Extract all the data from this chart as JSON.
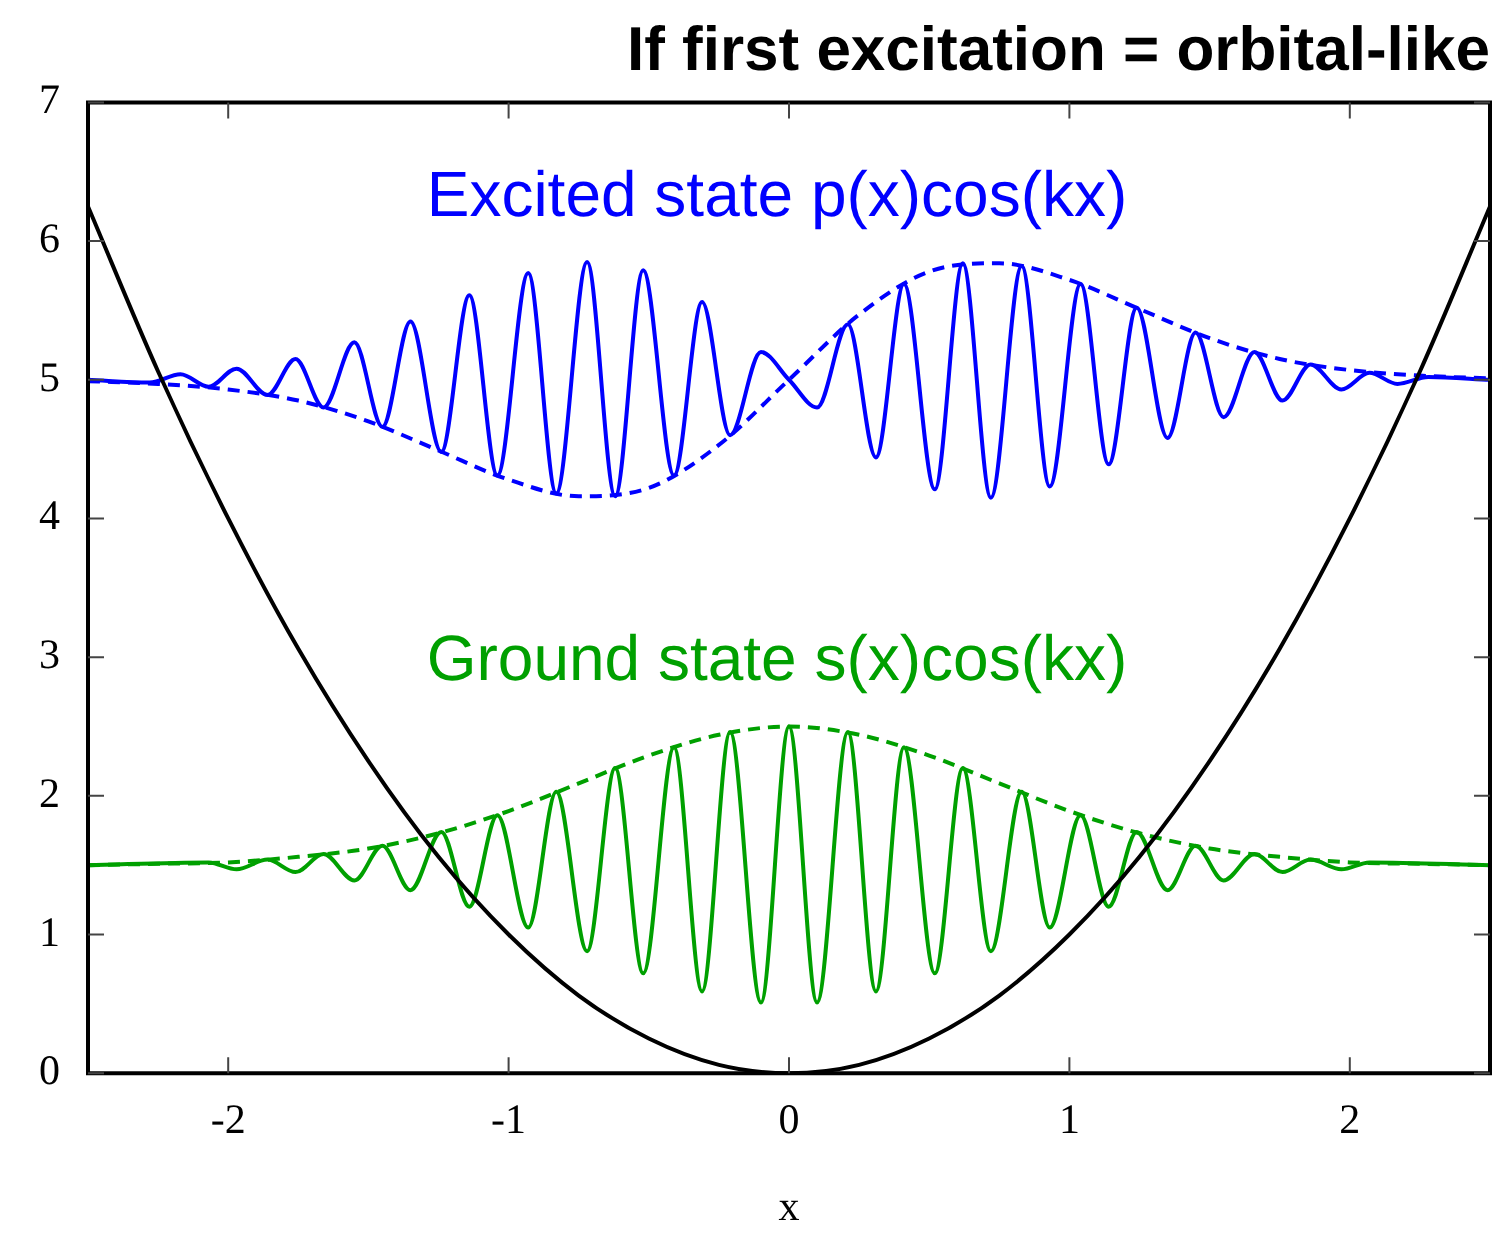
{
  "chart_data": {
    "type": "line",
    "title": "If first excitation = orbital-like",
    "xlabel": "x",
    "xlim": [
      -2.5,
      2.5
    ],
    "xticks": [
      -2,
      -1,
      0,
      1,
      2
    ],
    "ylim": [
      0,
      7
    ],
    "yticks": [
      0,
      1,
      2,
      3,
      4,
      5,
      6,
      7
    ],
    "grid": false,
    "legend": false,
    "marker": "none",
    "series": [
      {
        "color": "#000000",
        "line_style": "solid",
        "x": [
          -2.5,
          -2.25,
          -2,
          -1.75,
          -1.5,
          -1.25,
          -1,
          -0.75,
          -0.5,
          -0.25,
          0,
          0.25,
          0.5,
          0.75,
          1,
          1.25,
          1.5,
          1.75,
          2,
          2.25,
          2.5
        ],
        "values": [
          6.25,
          5.06,
          4,
          3.06,
          2.25,
          1.56,
          1,
          0.56,
          0.25,
          0.06,
          0,
          0.06,
          0.25,
          0.56,
          1,
          1.56,
          2.25,
          3.06,
          4,
          5.06,
          6.25
        ]
      },
      {
        "name": "Excited state p(x)cos(kx)",
        "color": "#0000ff",
        "line_style": "solid",
        "x": [
          -2.5,
          -2.28,
          -2.17,
          -2.07,
          -1.97,
          -1.86,
          -1.76,
          -1.66,
          -1.55,
          -1.45,
          -1.35,
          -1.24,
          -1.14,
          -1.04,
          -0.93,
          -0.83,
          -0.72,
          -0.62,
          -0.52,
          -0.41,
          -0.31,
          -0.21,
          -0.1,
          0,
          0.1,
          0.21,
          0.31,
          0.41,
          0.52,
          0.62,
          0.72,
          0.83,
          0.93,
          1.04,
          1.14,
          1.24,
          1.35,
          1.45,
          1.55,
          1.66,
          1.76,
          1.86,
          1.97,
          2.07,
          2.17,
          2.28,
          2.5
        ],
        "values": [
          5,
          4.98,
          5.04,
          4.95,
          5.08,
          4.89,
          5.15,
          4.8,
          5.27,
          4.66,
          5.42,
          4.48,
          5.61,
          4.31,
          5.77,
          4.18,
          5.85,
          4.16,
          5.79,
          4.31,
          5.56,
          4.6,
          5.2,
          5,
          4.8,
          5.4,
          4.44,
          5.69,
          4.21,
          5.84,
          4.15,
          5.82,
          4.23,
          5.69,
          4.39,
          5.52,
          4.58,
          5.34,
          4.73,
          5.2,
          4.85,
          5.11,
          4.93,
          5.05,
          4.97,
          5.02,
          5
        ]
      },
      {
        "color": "#0000ff",
        "line_style": "dashed",
        "x": [
          -2.5,
          -2.25,
          -2,
          -1.75,
          -1.5,
          -1.25,
          -1,
          -0.75,
          -0.5,
          -0.25,
          0,
          0.25,
          0.5,
          0.75,
          1,
          1.25,
          1.5,
          1.75,
          2,
          2.25,
          2.5
        ],
        "values": [
          4.99,
          4.97,
          4.93,
          4.85,
          4.7,
          4.49,
          4.28,
          4.16,
          4.22,
          4.53,
          5,
          5.47,
          5.78,
          5.84,
          5.72,
          5.51,
          5.3,
          5.15,
          5.07,
          5.03,
          5.01
        ]
      },
      {
        "name": "Ground state s(x)cos(kx)",
        "color": "#00a000",
        "line_style": "solid",
        "x": [
          -2.5,
          -2.07,
          -1.97,
          -1.86,
          -1.76,
          -1.66,
          -1.55,
          -1.45,
          -1.35,
          -1.24,
          -1.14,
          -1.04,
          -0.93,
          -0.83,
          -0.72,
          -0.62,
          -0.52,
          -0.41,
          -0.31,
          -0.21,
          -0.1,
          0,
          0.1,
          0.21,
          0.31,
          0.41,
          0.52,
          0.62,
          0.72,
          0.83,
          0.93,
          1.04,
          1.14,
          1.24,
          1.35,
          1.45,
          1.55,
          1.66,
          1.76,
          1.86,
          1.97,
          2.07,
          2.5
        ],
        "values": [
          1.5,
          1.52,
          1.47,
          1.54,
          1.45,
          1.58,
          1.39,
          1.64,
          1.32,
          1.74,
          1.2,
          1.86,
          1.05,
          2.03,
          0.88,
          2.2,
          0.72,
          2.35,
          0.59,
          2.46,
          0.51,
          2.5,
          0.51,
          2.46,
          0.59,
          2.35,
          0.72,
          2.2,
          0.88,
          2.03,
          1.05,
          1.86,
          1.2,
          1.74,
          1.32,
          1.64,
          1.39,
          1.58,
          1.45,
          1.54,
          1.47,
          1.52,
          1.5
        ]
      },
      {
        "color": "#00a000",
        "line_style": "dashed",
        "x": [
          -2.5,
          -2.25,
          -2,
          -1.75,
          -1.5,
          -1.25,
          -1,
          -0.75,
          -0.5,
          -0.25,
          0,
          0.25,
          0.5,
          0.75,
          1,
          1.25,
          1.5,
          1.75,
          2,
          2.25,
          2.5
        ],
        "values": [
          1.5,
          1.51,
          1.52,
          1.56,
          1.62,
          1.73,
          1.89,
          2.09,
          2.29,
          2.44,
          2.5,
          2.44,
          2.29,
          2.09,
          1.89,
          1.73,
          1.62,
          1.56,
          1.52,
          1.51,
          1.5
        ]
      }
    ]
  }
}
